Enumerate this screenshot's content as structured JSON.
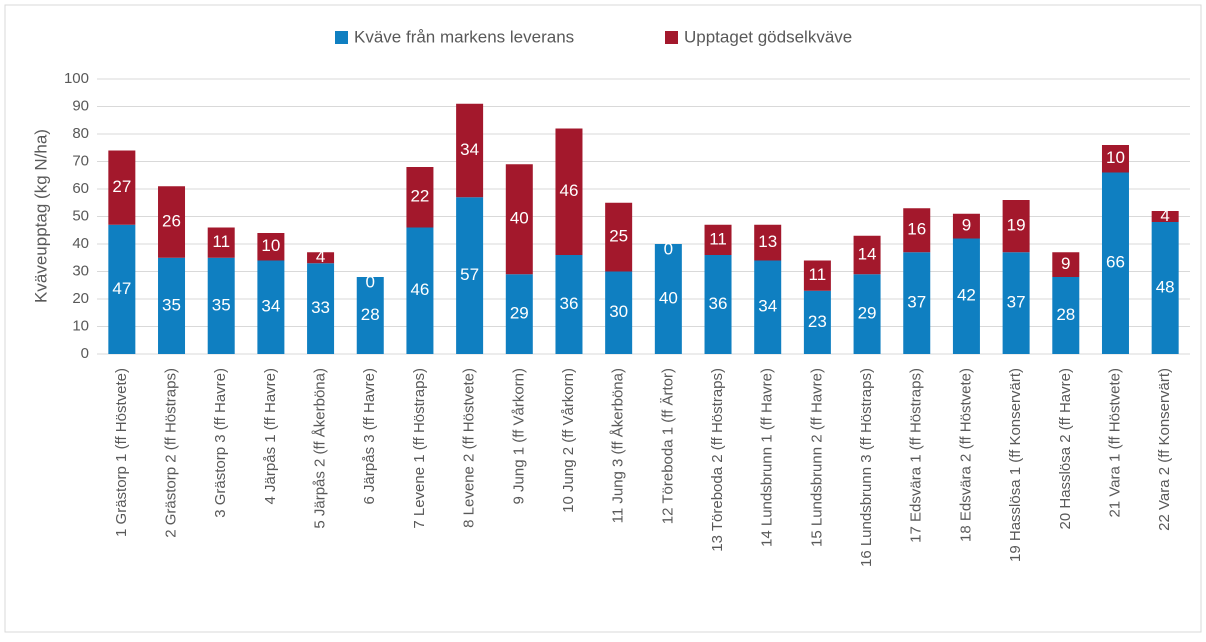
{
  "chart_data": {
    "type": "stacked_bar",
    "y_label": "Kväveupptag (kg N/ha)",
    "categories": [
      "1 Grästorp 1 (ff Höstvete)",
      "2 Grästorp 2 (ff Höstraps)",
      "3 Grästorp 3 (ff Havre)",
      "4 Järpås 1 (ff Havre)",
      "5 Järpås 2 (ff Åkerböna)",
      "6 Järpås 3 (ff Havre)",
      "7 Levene 1 (ff Höstraps)",
      "8 Levene 2 (ff Höstvete)",
      "9 Jung 1 (ff Vårkorn)",
      "10 Jung 2 (ff Vårkorn)",
      "11 Jung 3 (ff Åkerböna)",
      "12 Töreboda 1 (ff Ärtor)",
      "13 Töreboda 2 (ff Höstraps)",
      "14 Lundsbrunn 1 (ff Havre)",
      "15 Lundsbrunn 2 (ff Havre)",
      "16 Lundsbrunn 3 (ff Höstraps)",
      "17 Edsvära 1 (ff Höstraps)",
      "18 Edsvära 2 (ff Höstvete)",
      "19 Hasslösa 1 (ff Konservärt)",
      "20 Hasslösa 2 (ff Havre)",
      "21 Vara 1 (ff Höstvete)",
      "22 Vara 2 (ff Konservärt)"
    ],
    "series": [
      {
        "name": "Kväve från markens leverans",
        "color": "#0f7fc1",
        "values": [
          47,
          35,
          35,
          34,
          33,
          28,
          46,
          57,
          29,
          36,
          30,
          40,
          36,
          34,
          23,
          29,
          37,
          42,
          37,
          28,
          66,
          48
        ]
      },
      {
        "name": "Upptaget gödselkväve",
        "color": "#a3182c",
        "values": [
          27,
          26,
          11,
          10,
          4,
          0,
          22,
          34,
          40,
          46,
          25,
          0,
          11,
          13,
          11,
          14,
          16,
          9,
          19,
          9,
          10,
          4
        ]
      }
    ],
    "ylim": [
      0,
      100
    ],
    "yticks": [
      0,
      10,
      20,
      30,
      40,
      50,
      60,
      70,
      80,
      90,
      100
    ],
    "grid": true,
    "legend": "top"
  }
}
